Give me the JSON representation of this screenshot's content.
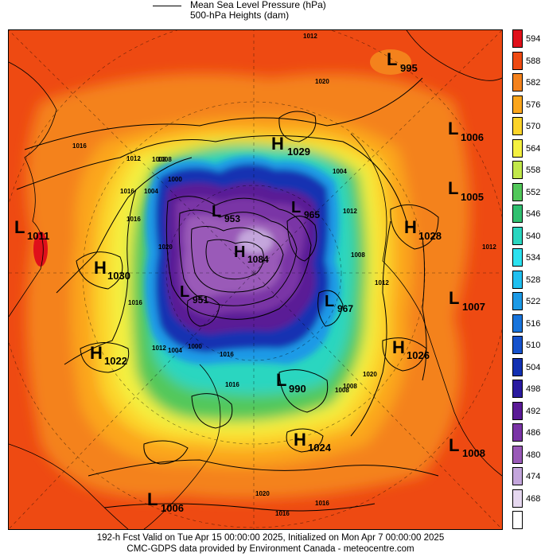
{
  "legend": {
    "line1": "Mean Sea Level Pressure (hPa)",
    "line2": "500-hPa Heights (dam)"
  },
  "scale": [
    {
      "label": "594",
      "color": "#e0101a"
    },
    {
      "label": "588",
      "color": "#ee4a12"
    },
    {
      "label": "582",
      "color": "#f4821c"
    },
    {
      "label": "576",
      "color": "#fba61c"
    },
    {
      "label": "570",
      "color": "#fcd42a"
    },
    {
      "label": "564",
      "color": "#f4f040"
    },
    {
      "label": "558",
      "color": "#c2e84a"
    },
    {
      "label": "552",
      "color": "#52c85a"
    },
    {
      "label": "546",
      "color": "#30c070"
    },
    {
      "label": "540",
      "color": "#2ad6c0"
    },
    {
      "label": "534",
      "color": "#2ce2f0"
    },
    {
      "label": "528",
      "color": "#20c0f0"
    },
    {
      "label": "522",
      "color": "#1c9ae6"
    },
    {
      "label": "516",
      "color": "#1874dc"
    },
    {
      "label": "510",
      "color": "#1652cc"
    },
    {
      "label": "504",
      "color": "#1230b2"
    },
    {
      "label": "498",
      "color": "#2a1aa0"
    },
    {
      "label": "492",
      "color": "#5a1a96"
    },
    {
      "label": "486",
      "color": "#7a34a6"
    },
    {
      "label": "480",
      "color": "#9a5ab8"
    },
    {
      "label": "474",
      "color": "#c4a6dc"
    },
    {
      "label": "468",
      "color": "#e6d8f0"
    },
    {
      "label": "",
      "color": "#ffffff"
    }
  ],
  "centers": [
    {
      "type": "L",
      "value": "995"
    },
    {
      "type": "H",
      "value": "1029"
    },
    {
      "type": "L",
      "value": "1006"
    },
    {
      "type": "L",
      "value": "1005"
    },
    {
      "type": "H",
      "value": "1028"
    },
    {
      "type": "L",
      "value": "1011"
    },
    {
      "type": "H",
      "value": "1030"
    },
    {
      "type": "L",
      "value": "953"
    },
    {
      "type": "L",
      "value": "965"
    },
    {
      "type": "H",
      "value": "1084"
    },
    {
      "type": "L",
      "value": "951"
    },
    {
      "type": "L",
      "value": "967"
    },
    {
      "type": "L",
      "value": "1007"
    },
    {
      "type": "H",
      "value": "1022"
    },
    {
      "type": "H",
      "value": "1026"
    },
    {
      "type": "L",
      "value": "990"
    },
    {
      "type": "H",
      "value": "1024"
    },
    {
      "type": "L",
      "value": "1008"
    },
    {
      "type": "L",
      "value": "1006"
    }
  ],
  "isobar_labels": [
    "1012",
    "1020",
    "1016",
    "1012",
    "1008",
    "1016",
    "1016",
    "1020",
    "1004",
    "1000",
    "1008",
    "1016",
    "1004",
    "1012",
    "1008",
    "1012",
    "1004",
    "1000",
    "1016",
    "1012",
    "1008",
    "1016",
    "1020",
    "1008",
    "1020",
    "1016",
    "1016",
    "1012"
  ],
  "footer": {
    "line1": "192-h Fcst Valid on Tue Apr 15 00:00:00 2025, Initialized on Mon Apr  7 00:00:00 2025",
    "line2": "CMC-GDPS data provided by Environment Canada - meteocentre.com"
  }
}
